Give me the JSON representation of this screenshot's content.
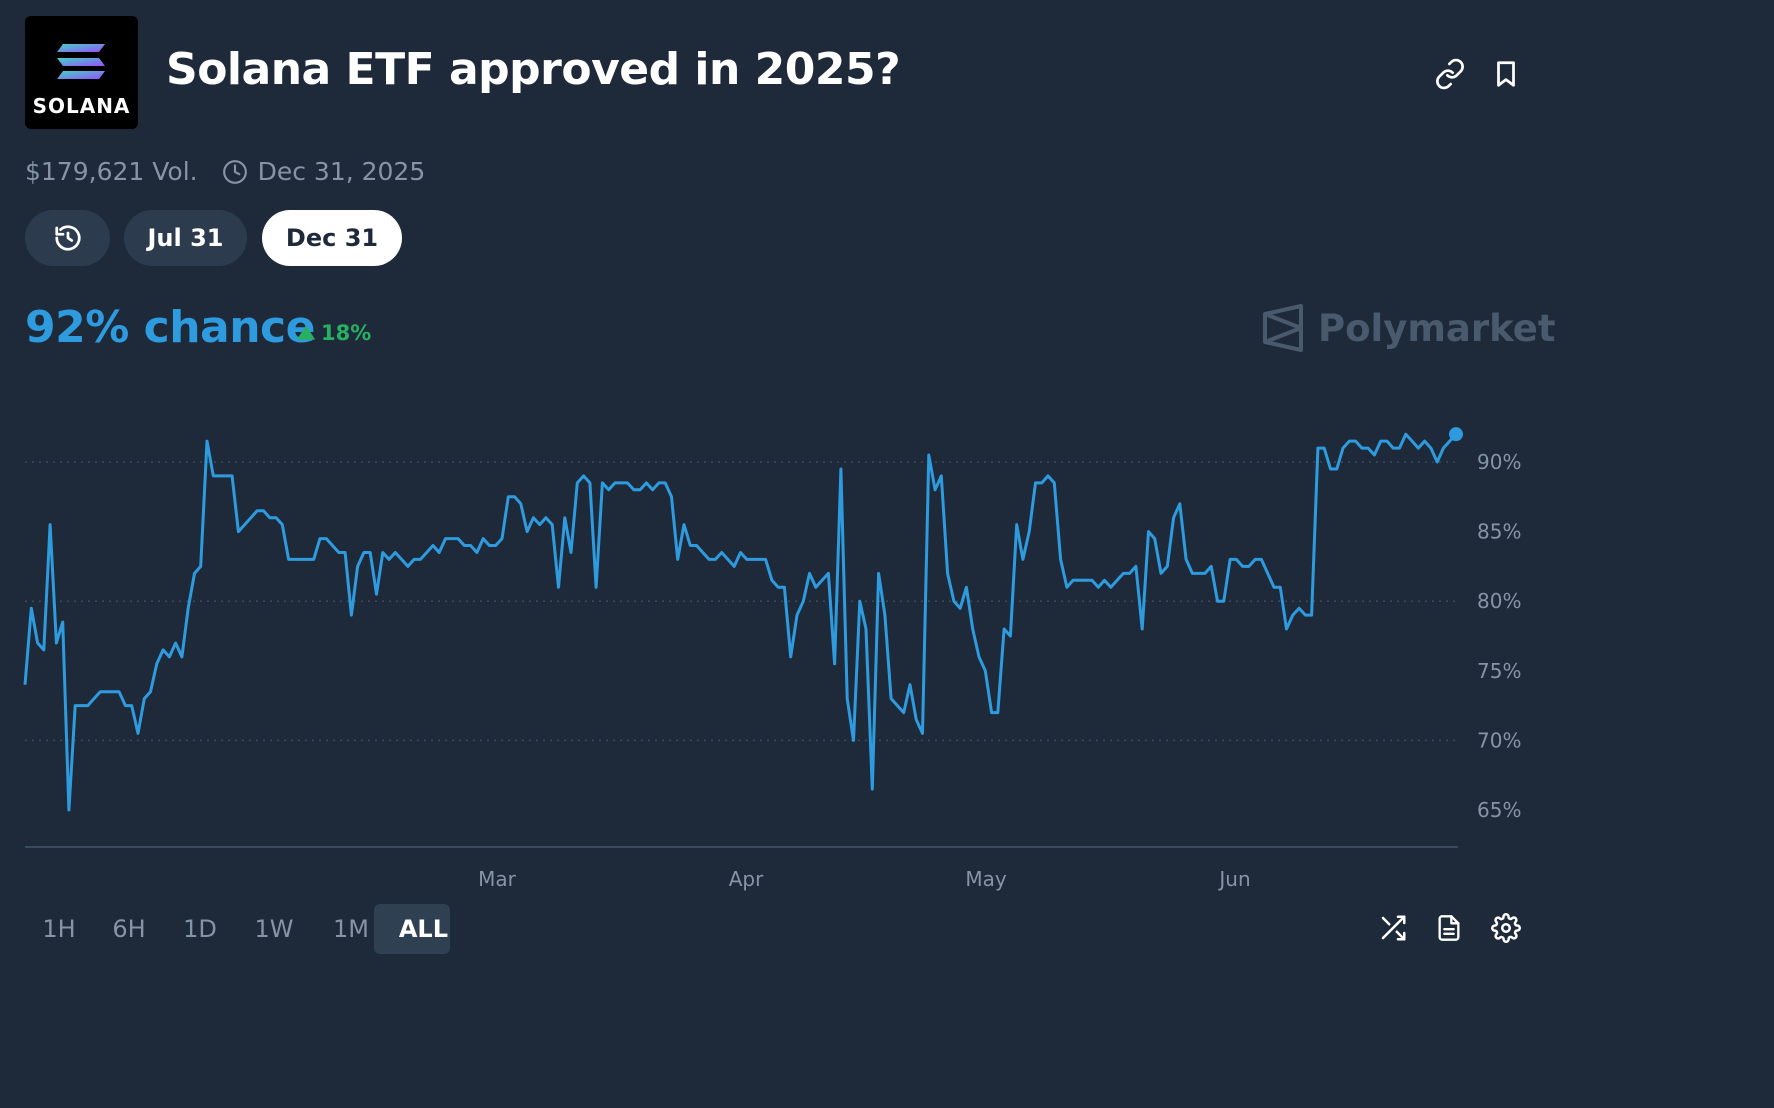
{
  "header": {
    "logo_text": "SOLANA",
    "title": "Solana ETF approved in 2025?",
    "link_icon": "link-icon",
    "bookmark_icon": "bookmark-icon"
  },
  "meta": {
    "volume": "$179,621 Vol.",
    "date": "Dec 31, 2025"
  },
  "date_tabs": [
    {
      "icon": "history-icon"
    },
    {
      "label": "Jul 31"
    },
    {
      "label": "Dec 31",
      "selected": true
    }
  ],
  "summary": {
    "chance": "92% chance",
    "delta": "18%",
    "brand": "Polymarket"
  },
  "colors": {
    "background": "#1e2a3a",
    "line": "#2e9bdf",
    "positive": "#27b062"
  },
  "chart_data": {
    "type": "line",
    "x_ticks": [
      "Mar",
      "Apr",
      "May",
      "Jun"
    ],
    "y_ticks": [
      "90%",
      "85%",
      "80%",
      "75%",
      "70%",
      "65%"
    ],
    "ylim": [
      62,
      93
    ],
    "grid": "horizontal-dotted",
    "series": [
      {
        "values": [
          74,
          79.5,
          77,
          76.5,
          85.5,
          77,
          78.5,
          65,
          72.5,
          72.5,
          72.5,
          73,
          73.5,
          73.5,
          73.5,
          73.5,
          72.5,
          72.5,
          70.5,
          73,
          73.5,
          75.5,
          76.5,
          76,
          77,
          76,
          79.5,
          82,
          82.5,
          91.5,
          89,
          89,
          89,
          89,
          85,
          85.5,
          86,
          86.5,
          86.5,
          86,
          86,
          85.5,
          83,
          83,
          83,
          83,
          83,
          84.5,
          84.5,
          84,
          83.5,
          83.5,
          79,
          82.5,
          83.5,
          83.5,
          80.5,
          83.5,
          83,
          83.5,
          83,
          82.5,
          83,
          83,
          83.5,
          84,
          83.5,
          84.5,
          84.5,
          84.5,
          84,
          84,
          83.5,
          84.5,
          84,
          84,
          84.5,
          87.5,
          87.5,
          87,
          85,
          86,
          85.5,
          86,
          85.5,
          81,
          86,
          83.5,
          88.5,
          89,
          88.5,
          81,
          88.5,
          88,
          88.5,
          88.5,
          88.5,
          88,
          88,
          88.5,
          88,
          88.5,
          88.5,
          87.5,
          83,
          85.5,
          84,
          84,
          83.5,
          83,
          83,
          83.5,
          83,
          82.5,
          83.5,
          83,
          83,
          83,
          83,
          81.5,
          81,
          81,
          76,
          79,
          80,
          82,
          81,
          81.5,
          82,
          75.5,
          89.5,
          73,
          70,
          80,
          78,
          66.5,
          82,
          79,
          73,
          72.5,
          72,
          74,
          71.5,
          70.5,
          90.5,
          88,
          89,
          82,
          80,
          79.5,
          81,
          78,
          76,
          75,
          72,
          72,
          78,
          77.5,
          85.5,
          83,
          85,
          88.5,
          88.5,
          89,
          88.5,
          83,
          81,
          81.5,
          81.5,
          81.5,
          81.5,
          81,
          81.5,
          81,
          81.5,
          82,
          82,
          82.5,
          78,
          85,
          84.5,
          82,
          82.5,
          86,
          87,
          83,
          82,
          82,
          82,
          82.5,
          80,
          80,
          83,
          83,
          82.5,
          82.5,
          83,
          83,
          82,
          81,
          81,
          78,
          79,
          79.5,
          79,
          79,
          91,
          91,
          89.5,
          89.5,
          91,
          91.5,
          91.5,
          91,
          91,
          90.5,
          91.5,
          91.5,
          91,
          91,
          92,
          91.5,
          91,
          91.5,
          91,
          90,
          91,
          91.5,
          92
        ]
      }
    ]
  },
  "timeframes": [
    {
      "label": "1H"
    },
    {
      "label": "6H"
    },
    {
      "label": "1D"
    },
    {
      "label": "1W"
    },
    {
      "label": "1M"
    },
    {
      "label": "ALL",
      "selected": true
    }
  ],
  "footer_icons": [
    "shuffle-icon",
    "document-icon",
    "settings-icon"
  ]
}
